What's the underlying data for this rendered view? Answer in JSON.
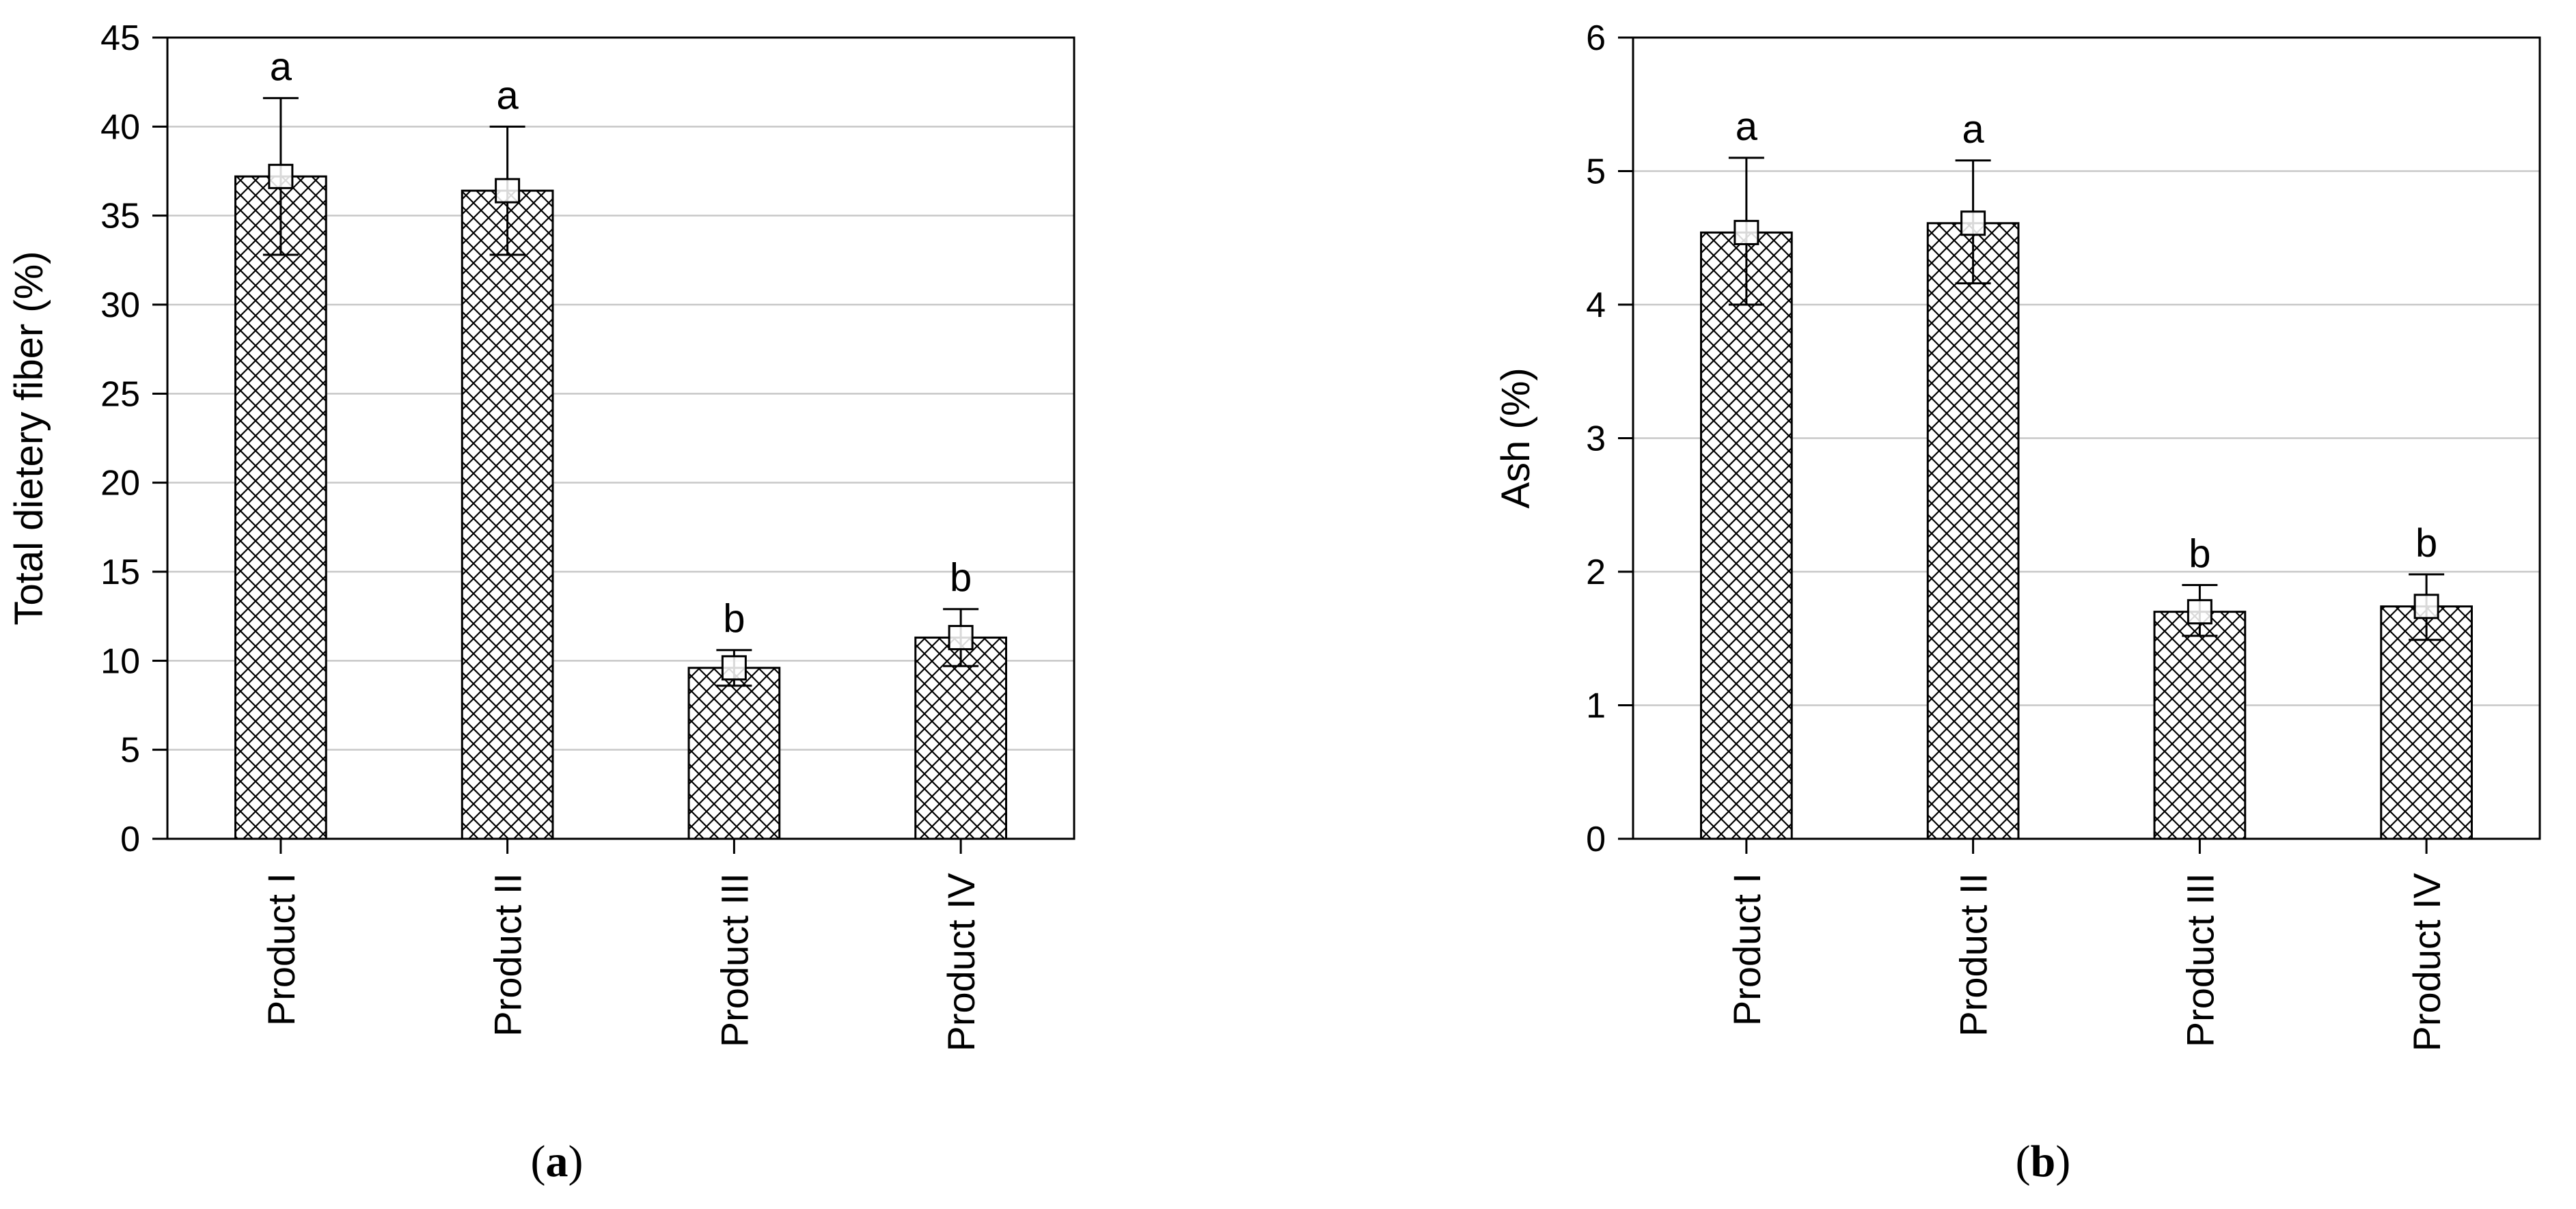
{
  "chart_data": [
    {
      "type": "bar",
      "panel_label": "a",
      "categories": [
        "Product I",
        "Product II",
        "Product III",
        "Product IV"
      ],
      "values": [
        37.2,
        36.4,
        9.6,
        11.3
      ],
      "error_low": [
        32.8,
        32.8,
        8.6,
        9.7
      ],
      "error_high": [
        41.6,
        40.0,
        10.6,
        12.9
      ],
      "significance_letters": [
        "a",
        "a",
        "b",
        "b"
      ],
      "xlabel": "",
      "ylabel": "Total dietery fiber (%)",
      "ylim": [
        0,
        45
      ],
      "yticks": [
        0,
        5,
        10,
        15,
        20,
        25,
        30,
        35,
        40,
        45
      ],
      "grid": true,
      "bar_fill": "crosshatch",
      "colors": {
        "bar_outline": "#000000",
        "hatch": "#000000",
        "grid": "#c8c8c8"
      }
    },
    {
      "type": "bar",
      "panel_label": "b",
      "categories": [
        "Product I",
        "Product II",
        "Product III",
        "Product IV"
      ],
      "values": [
        4.54,
        4.61,
        1.7,
        1.74
      ],
      "error_low": [
        4.0,
        4.16,
        1.52,
        1.49
      ],
      "error_high": [
        5.1,
        5.08,
        1.9,
        1.98
      ],
      "significance_letters": [
        "a",
        "a",
        "b",
        "b"
      ],
      "xlabel": "",
      "ylabel": "Ash (%)",
      "ylim": [
        0,
        6
      ],
      "yticks": [
        0,
        1,
        2,
        3,
        4,
        5,
        6
      ],
      "grid": true,
      "bar_fill": "crosshatch",
      "colors": {
        "bar_outline": "#000000",
        "hatch": "#000000",
        "grid": "#c8c8c8"
      }
    }
  ]
}
